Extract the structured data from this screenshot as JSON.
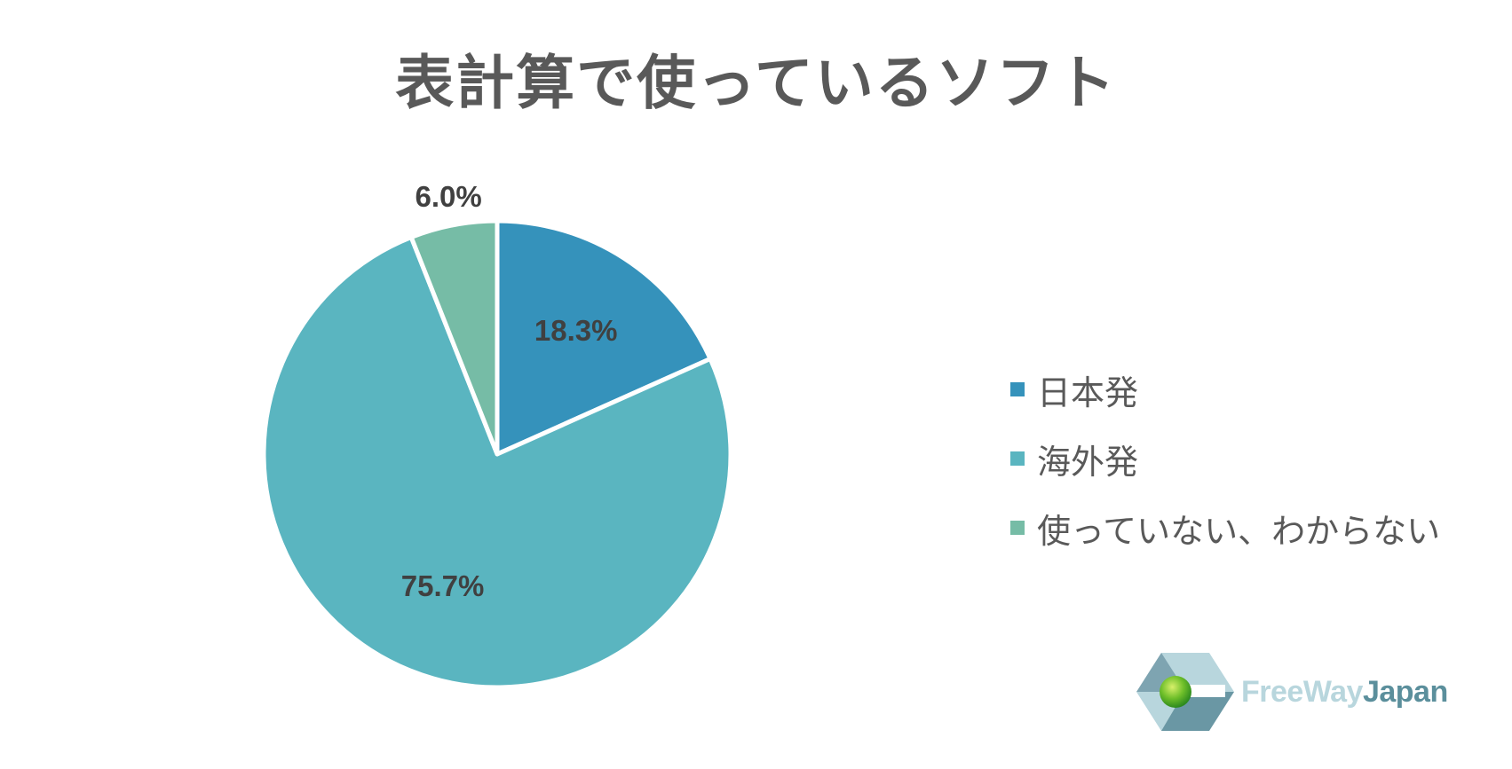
{
  "chart_data": {
    "type": "pie",
    "title": "表計算で使っているソフト",
    "slices": [
      {
        "name": "日本発",
        "value": 18.3,
        "label": "18.3%",
        "color": "#3592bb"
      },
      {
        "name": "海外発",
        "value": 75.7,
        "label": "75.7%",
        "color": "#5ab5c0"
      },
      {
        "name": "使っていない、わからない",
        "value": 6.0,
        "label": "6.0%",
        "color": "#76bca6"
      }
    ],
    "start_angle_deg": 0,
    "direction": "clockwise",
    "legend_placement": "right"
  },
  "logo": {
    "name": "FreeWayJapan",
    "text_part1": "FreeWay",
    "text_part2": "Japan"
  }
}
